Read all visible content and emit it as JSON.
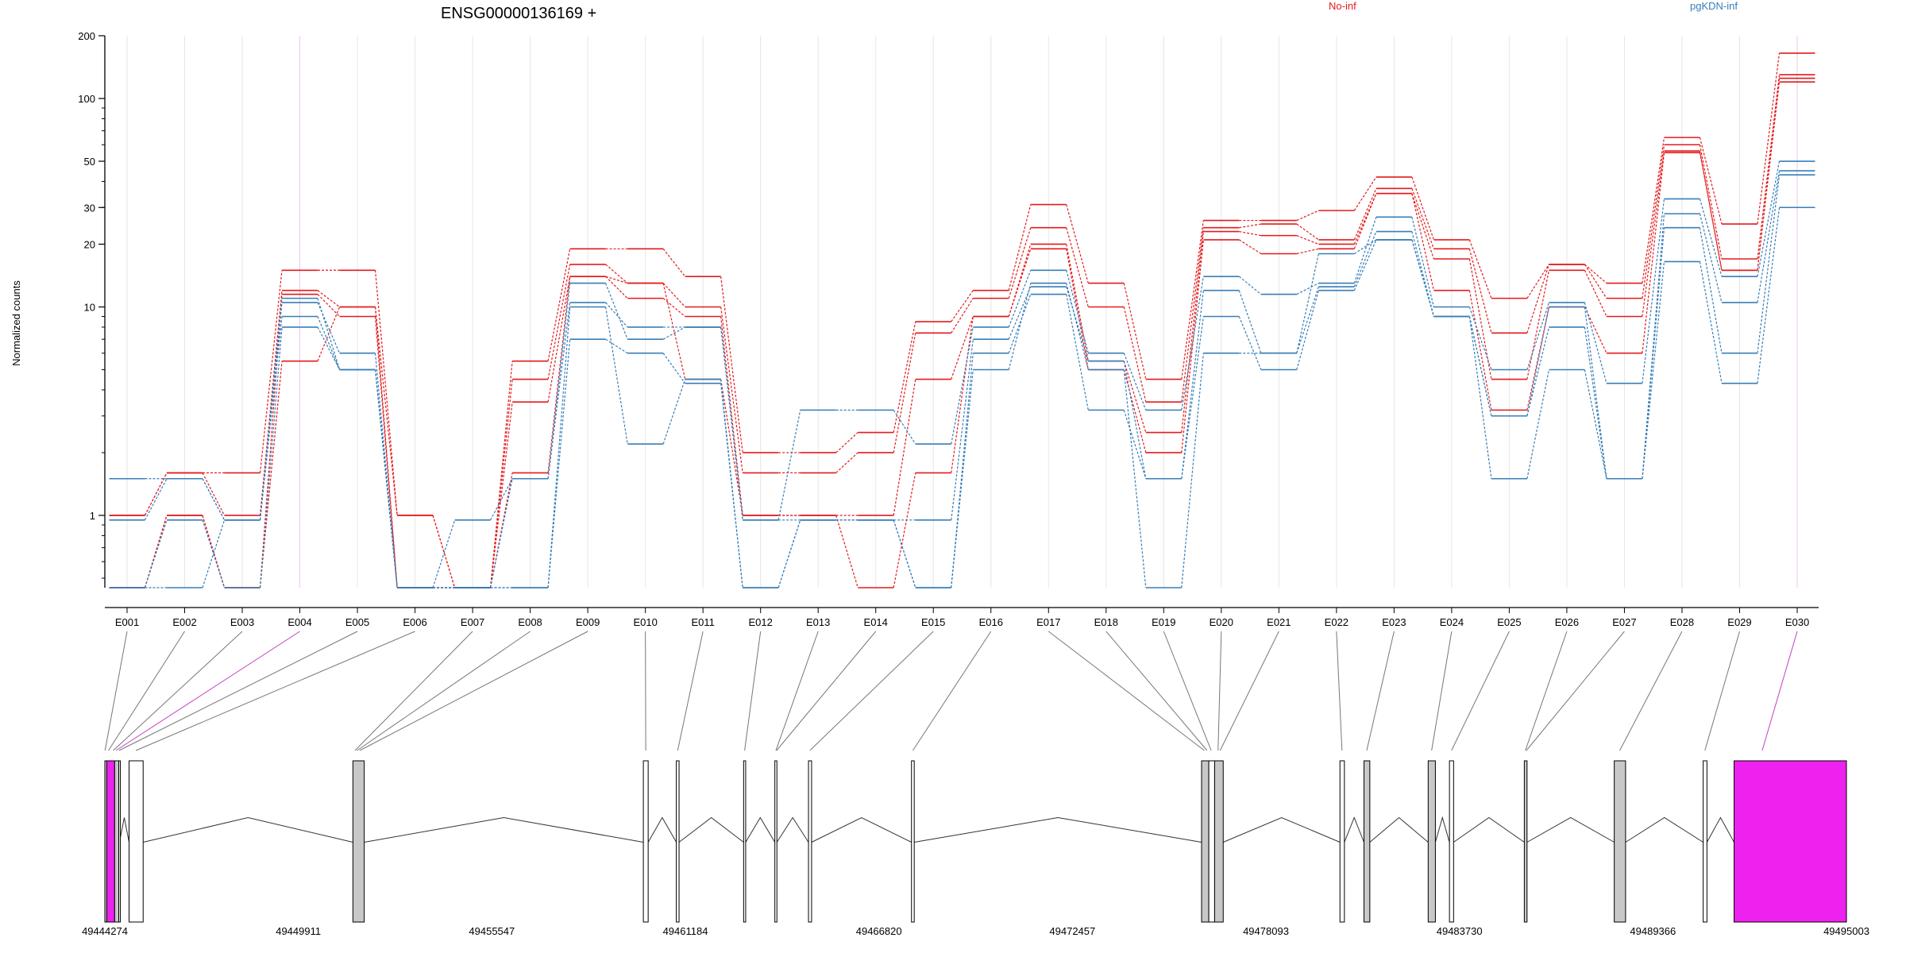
{
  "title": "ENSG00000136169 +",
  "ylabel": "Normalized counts",
  "colors": {
    "no_inf": "#e41a1c",
    "pgkdn_inf": "#377eb8",
    "highlight": "#ee22ee",
    "exon_fill": "#c8c8c8",
    "grid": "#e6e6e6"
  },
  "legend": [
    {
      "label": "No-inf",
      "color": "#e41a1c"
    },
    {
      "label": "pgKDN-inf",
      "color": "#377eb8"
    }
  ],
  "chart_data": {
    "type": "line",
    "title": "ENSG00000136169 +",
    "ylabel": "Normalized counts",
    "yscale": "log",
    "ylim": [
      0.45,
      200
    ],
    "yticks": [
      {
        "value": 1,
        "label": "1"
      },
      {
        "value": 10,
        "label": "10"
      },
      {
        "value": 20,
        "label": "20"
      },
      {
        "value": 30,
        "label": "30"
      },
      {
        "value": 50,
        "label": "50"
      },
      {
        "value": 100,
        "label": "100"
      },
      {
        "value": 200,
        "label": "200"
      }
    ],
    "categories": [
      "E001",
      "E002",
      "E003",
      "E004",
      "E005",
      "E006",
      "E007",
      "E008",
      "E009",
      "E010",
      "E011",
      "E012",
      "E013",
      "E014",
      "E015",
      "E016",
      "E017",
      "E018",
      "E019",
      "E020",
      "E021",
      "E022",
      "E023",
      "E024",
      "E025",
      "E026",
      "E027",
      "E028",
      "E029",
      "E030"
    ],
    "highlighted_exons": [
      "E004",
      "E030"
    ],
    "series": [
      {
        "group": "No-inf",
        "values": [
          1.0,
          1.6,
          1.6,
          15,
          15,
          1.0,
          0.45,
          5.5,
          19,
          19,
          14,
          2.0,
          2.0,
          2.5,
          8.5,
          12,
          31,
          13,
          4.5,
          26,
          26,
          29,
          42,
          21,
          11,
          16,
          13,
          65,
          25,
          165
        ]
      },
      {
        "group": "No-inf",
        "values": [
          1.0,
          1.6,
          1.0,
          12,
          10,
          1.0,
          0.45,
          4.5,
          16,
          13,
          10,
          1.6,
          1.6,
          2.0,
          7.5,
          11,
          24,
          10,
          3.5,
          24,
          25,
          21,
          37,
          19,
          7.5,
          16,
          11,
          60,
          17,
          130
        ]
      },
      {
        "group": "No-inf",
        "values": [
          0.45,
          1.0,
          0.45,
          11.5,
          9,
          0.45,
          0.45,
          3.5,
          14,
          11,
          9,
          1.0,
          1.0,
          1.0,
          4.5,
          9,
          20,
          5.5,
          2.5,
          23,
          22,
          20,
          35,
          17,
          4.5,
          15,
          9,
          56,
          15,
          125
        ]
      },
      {
        "group": "No-inf",
        "values": [
          0.45,
          1.0,
          0.45,
          5.5,
          10,
          0.45,
          0.45,
          1.6,
          14,
          13,
          4.5,
          1.0,
          1.0,
          0.45,
          1.6,
          9,
          19,
          5,
          2.0,
          21,
          18,
          19,
          35,
          12,
          3.2,
          10,
          6,
          55,
          15,
          120
        ]
      },
      {
        "group": "pgKDN-inf",
        "values": [
          1.5,
          1.5,
          0.95,
          10.5,
          6,
          0.45,
          0.95,
          1.5,
          10.5,
          8,
          8,
          0.95,
          3.2,
          3.2,
          2.2,
          8,
          15,
          6,
          3.2,
          14,
          11.5,
          13,
          27,
          10,
          5,
          10.5,
          4.3,
          33,
          14,
          50
        ]
      },
      {
        "group": "pgKDN-inf",
        "values": [
          0.95,
          1.5,
          0.95,
          9,
          5,
          0.45,
          0.45,
          1.5,
          13,
          7,
          8,
          0.95,
          0.95,
          0.95,
          0.95,
          7,
          12.5,
          5.5,
          1.5,
          12,
          6,
          12.5,
          23,
          9,
          3,
          10,
          1.5,
          28,
          10.5,
          45
        ]
      },
      {
        "group": "pgKDN-inf",
        "values": [
          0.45,
          0.95,
          0.45,
          8,
          5,
          0.45,
          0.45,
          0.45,
          7,
          6,
          4.3,
          0.45,
          0.95,
          0.95,
          0.45,
          6,
          11.5,
          3.2,
          1.5,
          9,
          5,
          12,
          21,
          9,
          3,
          8,
          1.5,
          24,
          6,
          43
        ]
      },
      {
        "group": "pgKDN-inf",
        "values": [
          0.45,
          0.45,
          0.95,
          11,
          5,
          0.45,
          0.45,
          0.45,
          10,
          2.2,
          4.5,
          0.45,
          0.95,
          0.95,
          0.45,
          5,
          13,
          5,
          0.45,
          6,
          6,
          18,
          21,
          9,
          1.5,
          5,
          1.5,
          16.5,
          4.3,
          30
        ]
      }
    ],
    "coordinate_ticks": [
      "49444274",
      "49449911",
      "49455547",
      "49461184",
      "49466820",
      "49472457",
      "49478093",
      "49483730",
      "49489366",
      "49495003"
    ],
    "genomic_range": [
      49444274,
      49495003
    ],
    "exon_blocks": [
      {
        "start": 49444274,
        "end": 49444330,
        "fill": "gray"
      },
      {
        "start": 49444330,
        "end": 49444560,
        "fill": "magenta"
      },
      {
        "start": 49444560,
        "end": 49444680,
        "fill": "gray"
      },
      {
        "start": 49444680,
        "end": 49444700,
        "fill": "white"
      },
      {
        "start": 49444980,
        "end": 49445390,
        "fill": "white"
      },
      {
        "start": 49451500,
        "end": 49451830,
        "fill": "gray"
      },
      {
        "start": 49459960,
        "end": 49460100,
        "fill": "white"
      },
      {
        "start": 49460920,
        "end": 49461000,
        "fill": "white"
      },
      {
        "start": 49462880,
        "end": 49462940,
        "fill": "white"
      },
      {
        "start": 49463790,
        "end": 49463850,
        "fill": "white"
      },
      {
        "start": 49464770,
        "end": 49464860,
        "fill": "white"
      },
      {
        "start": 49467770,
        "end": 49467850,
        "fill": "white"
      },
      {
        "start": 49476220,
        "end": 49476430,
        "fill": "gray"
      },
      {
        "start": 49476430,
        "end": 49476600,
        "fill": "white"
      },
      {
        "start": 49476600,
        "end": 49476850,
        "fill": "gray"
      },
      {
        "start": 49480250,
        "end": 49480380,
        "fill": "white"
      },
      {
        "start": 49480950,
        "end": 49481120,
        "fill": "gray"
      },
      {
        "start": 49482820,
        "end": 49483030,
        "fill": "gray"
      },
      {
        "start": 49483440,
        "end": 49483560,
        "fill": "white"
      },
      {
        "start": 49485620,
        "end": 49485700,
        "fill": "gray"
      },
      {
        "start": 49488240,
        "end": 49488570,
        "fill": "gray"
      },
      {
        "start": 49490830,
        "end": 49490940,
        "fill": "white"
      },
      {
        "start": 49491730,
        "end": 49495003,
        "fill": "magenta"
      }
    ],
    "exon_links": [
      49444280,
      49444380,
      49444520,
      49444600,
      49444690,
      49445180,
      49451560,
      49451620,
      49451700,
      49460030,
      49460960,
      49462910,
      49463820,
      49463840,
      49464810,
      49467810,
      49476300,
      49476380,
      49476500,
      49476700,
      49476760,
      49480310,
      49481030,
      49482920,
      49483500,
      49485650,
      49485680,
      49488400,
      49490880,
      49492550
    ]
  }
}
